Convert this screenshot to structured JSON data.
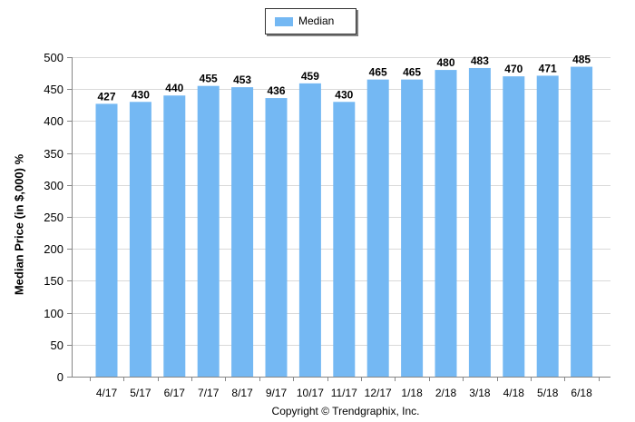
{
  "chart_data": {
    "type": "bar",
    "categories": [
      "4/17",
      "5/17",
      "6/17",
      "7/17",
      "8/17",
      "9/17",
      "10/17",
      "11/17",
      "12/17",
      "1/18",
      "2/18",
      "3/18",
      "4/18",
      "5/18",
      "6/18"
    ],
    "series": [
      {
        "name": "Median",
        "values": [
          427,
          430,
          440,
          455,
          453,
          436,
          459,
          430,
          465,
          465,
          480,
          483,
          470,
          471,
          485
        ],
        "color": "#74b8f3"
      }
    ],
    "ylabel": "Median Price (in $,000) %",
    "ylim": [
      0,
      500
    ],
    "yticks": [
      0,
      50,
      100,
      150,
      200,
      250,
      300,
      350,
      400,
      450,
      500
    ],
    "grid": true,
    "legend_position": "top-center",
    "data_labels": true
  },
  "footer": "Copyright © Trendgraphix, Inc."
}
